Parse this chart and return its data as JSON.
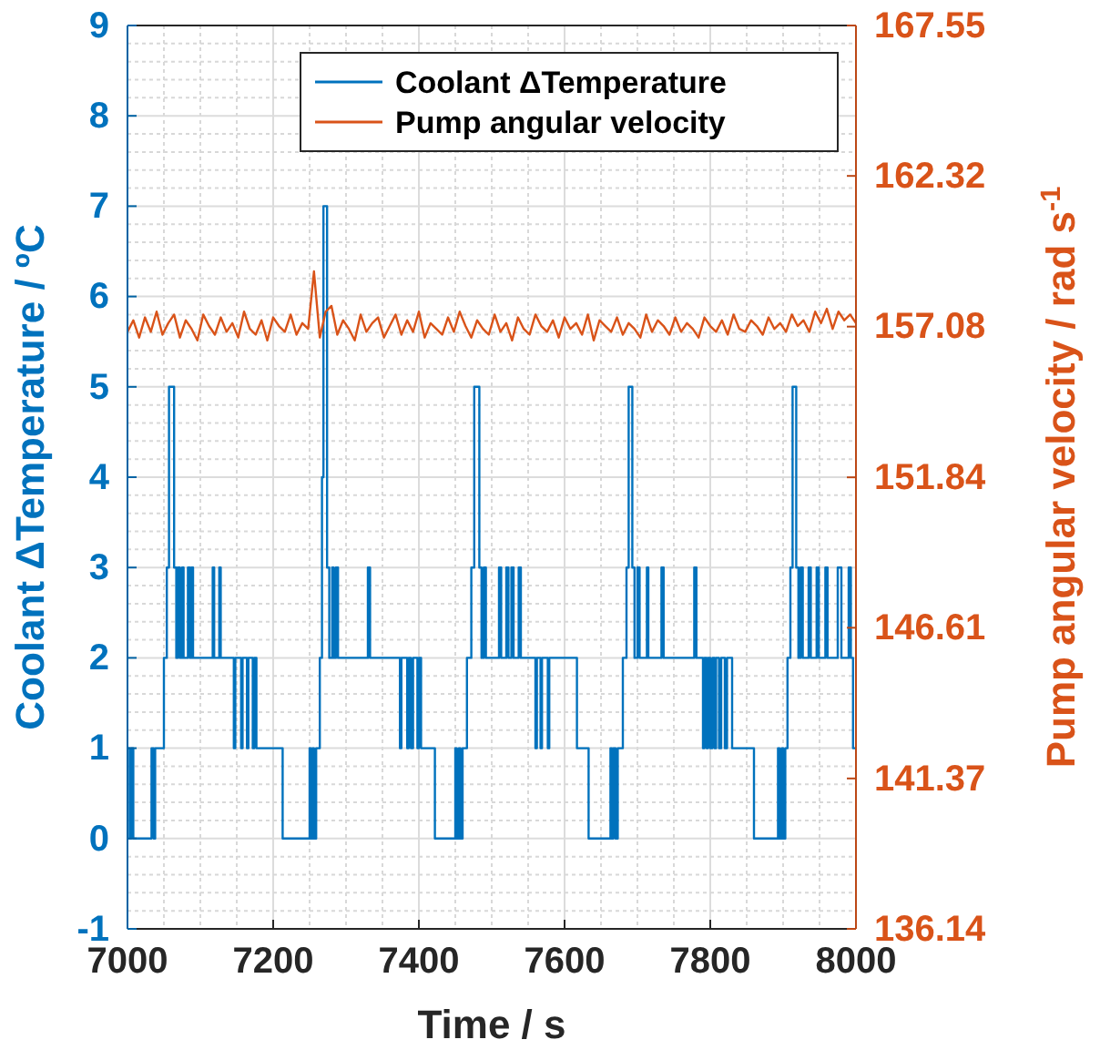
{
  "chart_data": {
    "type": "line",
    "xlabel": "Time / s",
    "ylabel": "Coolant ΔTemperature / ºC",
    "y2label": "Pump angular velocity / rad s$^{-1}$",
    "xlim": [
      7000,
      8000
    ],
    "xticks": [
      7000,
      7200,
      7400,
      7600,
      7800,
      8000
    ],
    "ylim": [
      -1,
      9
    ],
    "yticks": [
      -1,
      0,
      1,
      2,
      3,
      4,
      5,
      6,
      7,
      8,
      9
    ],
    "y2lim": [
      136.14,
      167.55
    ],
    "y2ticks": [
      136.14,
      141.37,
      146.61,
      151.84,
      157.08,
      162.32,
      167.55
    ],
    "grid": true,
    "legend": "top right",
    "series": [
      {
        "name": "Coolant ΔTemperature",
        "type": "step",
        "color": "#0072bd",
        "x": [
          7000,
          7003,
          7005,
          7008,
          7033,
          7036,
          7038,
          7050,
          7054,
          7057,
          7064,
          7067,
          7069,
          7072,
          7075,
          7077,
          7083,
          7086,
          7088,
          7090,
          7117,
          7119,
          7126,
          7128,
          7146,
          7148,
          7156,
          7158,
          7164,
          7166,
          7172,
          7174,
          7177,
          7213,
          7250,
          7252,
          7254,
          7256,
          7259,
          7264,
          7267,
          7269,
          7274,
          7277,
          7281,
          7283,
          7286,
          7289,
          7330,
          7333,
          7374,
          7376,
          7384,
          7386,
          7389,
          7392,
          7398,
          7400,
          7403,
          7422,
          7450,
          7452,
          7455,
          7457,
          7460,
          7466,
          7472,
          7476,
          7483,
          7486,
          7489,
          7492,
          7510,
          7513,
          7520,
          7523,
          7527,
          7530,
          7537,
          7540,
          7560,
          7562,
          7567,
          7569,
          7577,
          7579,
          7617,
          7633,
          7663,
          7665,
          7667,
          7670,
          7673,
          7680,
          7685,
          7688,
          7693,
          7696,
          7700,
          7703,
          7713,
          7715,
          7733,
          7736,
          7778,
          7781,
          7790,
          7792,
          7795,
          7797,
          7800,
          7803,
          7806,
          7808,
          7812,
          7815,
          7820,
          7823,
          7830,
          7860,
          7893,
          7895,
          7898,
          7900,
          7903,
          7906,
          7910,
          7913,
          7918,
          7921,
          7924,
          7927,
          7935,
          7938,
          7946,
          7949,
          7958,
          7961,
          7975,
          7980,
          7990,
          7993,
          7996,
          8000
        ],
        "values": [
          1,
          0,
          1,
          0,
          1,
          0,
          1,
          2,
          3,
          5,
          3,
          2,
          3,
          2,
          3,
          2,
          3,
          2,
          3,
          2,
          3,
          2,
          3,
          2,
          1,
          2,
          1,
          2,
          1,
          2,
          1,
          2,
          1,
          0,
          1,
          0,
          1,
          0,
          1,
          2,
          4,
          7,
          3,
          2,
          3,
          2,
          3,
          2,
          3,
          2,
          1,
          2,
          1,
          2,
          1,
          2,
          1,
          2,
          1,
          0,
          1,
          0,
          1,
          0,
          1,
          2,
          3,
          5,
          3,
          2,
          3,
          2,
          3,
          2,
          3,
          2,
          3,
          2,
          3,
          2,
          1,
          2,
          1,
          2,
          1,
          2,
          1,
          0,
          1,
          0,
          1,
          0,
          1,
          2,
          3,
          5,
          3,
          2,
          3,
          2,
          3,
          2,
          3,
          2,
          3,
          2,
          1,
          2,
          1,
          2,
          1,
          2,
          1,
          2,
          1,
          2,
          1,
          2,
          1,
          0,
          1,
          0,
          1,
          0,
          1,
          2,
          3,
          5,
          3,
          2,
          3,
          2,
          3,
          2,
          3,
          2,
          3,
          2,
          3,
          2,
          3,
          2,
          1,
          1
        ]
      },
      {
        "name": "Pump angular velocity",
        "type": "line",
        "axis": "y2",
        "color": "#d95319",
        "x": [
          7000,
          7008,
          7016,
          7024,
          7032,
          7040,
          7048,
          7056,
          7064,
          7072,
          7080,
          7088,
          7096,
          7104,
          7112,
          7120,
          7128,
          7136,
          7144,
          7152,
          7160,
          7168,
          7176,
          7184,
          7192,
          7200,
          7208,
          7216,
          7224,
          7232,
          7240,
          7248,
          7256,
          7264,
          7272,
          7280,
          7288,
          7296,
          7304,
          7312,
          7320,
          7328,
          7336,
          7344,
          7352,
          7360,
          7368,
          7376,
          7384,
          7392,
          7400,
          7408,
          7416,
          7424,
          7432,
          7440,
          7448,
          7456,
          7464,
          7472,
          7480,
          7488,
          7496,
          7504,
          7512,
          7520,
          7528,
          7536,
          7544,
          7552,
          7560,
          7568,
          7576,
          7584,
          7592,
          7600,
          7608,
          7616,
          7624,
          7632,
          7640,
          7648,
          7656,
          7664,
          7672,
          7680,
          7688,
          7696,
          7704,
          7712,
          7720,
          7728,
          7736,
          7744,
          7752,
          7760,
          7768,
          7776,
          7784,
          7792,
          7800,
          7808,
          7816,
          7824,
          7832,
          7840,
          7848,
          7856,
          7864,
          7872,
          7880,
          7888,
          7896,
          7904,
          7912,
          7920,
          7928,
          7936,
          7944,
          7952,
          7960,
          7968,
          7976,
          7984,
          7992,
          8000
        ],
        "values": [
          156.9,
          157.3,
          156.7,
          157.4,
          156.9,
          157.6,
          156.8,
          157.2,
          157.5,
          156.7,
          157.3,
          157.0,
          156.6,
          157.5,
          157.1,
          156.8,
          157.4,
          156.9,
          157.2,
          156.7,
          157.6,
          157.0,
          156.8,
          157.3,
          156.6,
          157.4,
          157.1,
          156.9,
          157.5,
          156.8,
          157.2,
          157.0,
          159.0,
          156.7,
          157.6,
          157.8,
          156.8,
          157.3,
          157.0,
          156.6,
          157.5,
          156.9,
          157.2,
          157.4,
          156.7,
          157.1,
          157.5,
          156.8,
          157.3,
          156.9,
          157.6,
          156.7,
          157.2,
          157.0,
          156.8,
          157.4,
          156.9,
          157.6,
          157.1,
          156.7,
          157.3,
          157.0,
          156.8,
          157.5,
          156.9,
          157.2,
          156.6,
          157.4,
          157.0,
          156.8,
          157.5,
          157.1,
          156.9,
          157.3,
          156.7,
          157.4,
          157.0,
          157.2,
          156.8,
          157.5,
          156.6,
          157.3,
          157.1,
          156.9,
          157.4,
          156.8,
          157.2,
          157.0,
          156.7,
          157.5,
          156.9,
          157.3,
          157.1,
          156.8,
          157.4,
          156.9,
          157.2,
          157.0,
          156.7,
          157.4,
          157.1,
          156.9,
          157.3,
          156.8,
          157.5,
          157.0,
          156.9,
          157.3,
          157.1,
          156.8,
          157.4,
          157.0,
          157.2,
          156.9,
          157.5,
          157.1,
          157.3,
          156.9,
          157.6,
          157.2,
          157.7,
          157.0,
          157.6,
          157.3,
          157.5,
          157.2
        ]
      }
    ]
  }
}
